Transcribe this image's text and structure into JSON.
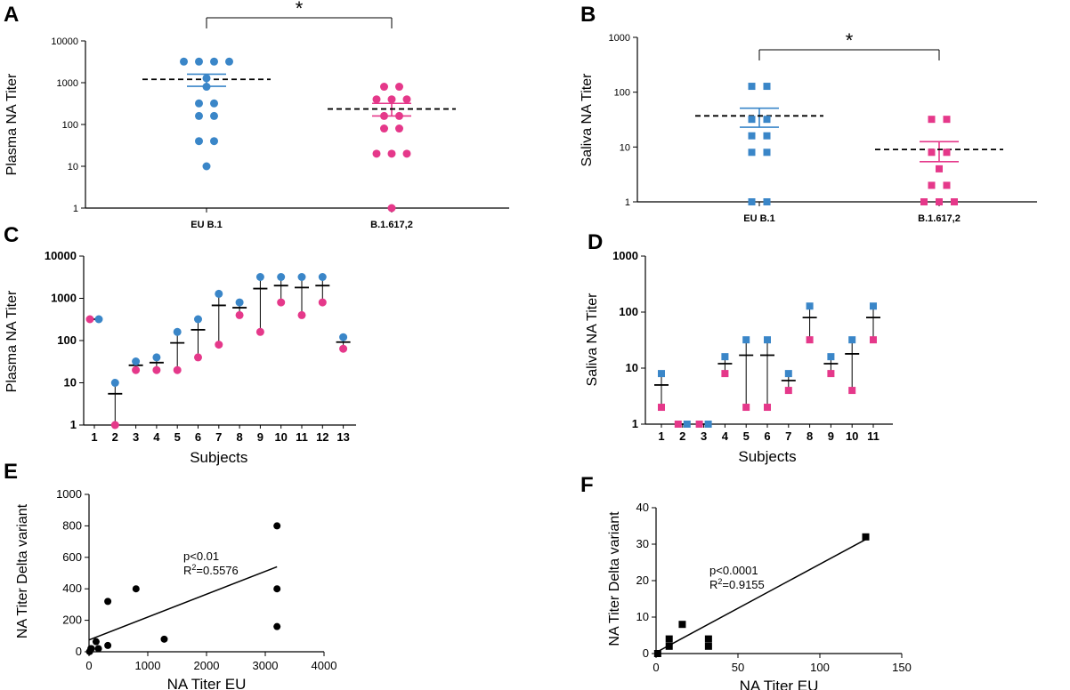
{
  "colors": {
    "blue": "#3a86c8",
    "pink": "#e5388a",
    "black": "#000000"
  },
  "chart_data": [
    {
      "panel": "A",
      "type": "scatter",
      "ylabel": "Plasma NA Titer",
      "xlabel": "",
      "yscale": "log",
      "ylim": [
        1,
        10000
      ],
      "yticks": [
        "1",
        "10",
        "100",
        "1000",
        "10000"
      ],
      "categories": [
        "EU B.1",
        "B.1.617,2"
      ],
      "series": [
        {
          "name": "EU B.1",
          "color": "blue",
          "geo_mean": 1200,
          "sem_low": 820,
          "sem_high": 1600,
          "values": [
            3200,
            3200,
            3200,
            3200,
            1280,
            800,
            320,
            320,
            160,
            160,
            40,
            40,
            10
          ]
        },
        {
          "name": "B.1.617,2",
          "color": "pink",
          "geo_mean": 235,
          "sem_low": 160,
          "sem_high": 320,
          "values": [
            800,
            800,
            400,
            400,
            400,
            160,
            160,
            80,
            80,
            20,
            20,
            20,
            1
          ]
        }
      ],
      "significance": "*"
    },
    {
      "panel": "B",
      "type": "scatter",
      "ylabel": "Saliva NA  Titer",
      "xlabel": "",
      "yscale": "log",
      "ylim": [
        1,
        1000
      ],
      "yticks": [
        "1",
        "10",
        "100",
        "1000"
      ],
      "categories": [
        "EU B.1",
        "B.1.617,2"
      ],
      "series": [
        {
          "name": "EU B.1",
          "color": "blue",
          "geo_mean": 37,
          "sem_low": 23,
          "sem_high": 51,
          "values": [
            128,
            128,
            32,
            32,
            16,
            16,
            8,
            8,
            1,
            1
          ]
        },
        {
          "name": "B.1.617,2",
          "color": "pink",
          "geo_mean": 9,
          "sem_low": 5.4,
          "sem_high": 12.5,
          "values": [
            32,
            32,
            8,
            8,
            4,
            2,
            2,
            1,
            1,
            1
          ]
        }
      ],
      "significance": "*"
    },
    {
      "panel": "C",
      "type": "scatter",
      "ylabel": "Plasma NA Titer",
      "xlabel": "Subjects",
      "yscale": "log",
      "ylim": [
        1,
        10000
      ],
      "yticks": [
        "1",
        "10",
        "100",
        "1000",
        "10000"
      ],
      "categories": [
        "1",
        "2",
        "3",
        "4",
        "5",
        "6",
        "7",
        "8",
        "9",
        "10",
        "11",
        "12",
        "13"
      ],
      "series": [
        {
          "name": "EU B.1",
          "color": "blue",
          "values": [
            320,
            10,
            32,
            40,
            160,
            320,
            1280,
            800,
            3200,
            3200,
            3200,
            3200,
            120
          ]
        },
        {
          "name": "B.1.617,2",
          "color": "pink",
          "values": [
            320,
            1,
            20,
            20,
            20,
            40,
            80,
            400,
            160,
            800,
            400,
            800,
            64
          ]
        }
      ],
      "means": [
        320,
        5.5,
        26,
        30,
        88,
        180,
        680,
        600,
        1700,
        2000,
        1800,
        2000,
        92
      ]
    },
    {
      "panel": "D",
      "type": "scatter",
      "ylabel": "Saliva NA  Titer",
      "xlabel": "Subjects",
      "yscale": "log",
      "ylim": [
        1,
        1000
      ],
      "yticks": [
        "1",
        "10",
        "100",
        "1000"
      ],
      "categories": [
        "1",
        "2",
        "3",
        "4",
        "5",
        "6",
        "7",
        "8",
        "9",
        "10",
        "11"
      ],
      "series": [
        {
          "name": "EU B.1",
          "color": "blue",
          "values": [
            8,
            1,
            1,
            16,
            32,
            32,
            8,
            128,
            16,
            32,
            128
          ]
        },
        {
          "name": "B.1.617,2",
          "color": "pink",
          "values": [
            2,
            1,
            1,
            8,
            2,
            2,
            4,
            32,
            8,
            4,
            32
          ]
        }
      ],
      "means": [
        5,
        1,
        1,
        12,
        17,
        17,
        6,
        80,
        12,
        18,
        80
      ]
    },
    {
      "panel": "E",
      "type": "scatter",
      "xlabel": "NA Titer EU",
      "ylabel": "NA Titer Delta variant",
      "xlim": [
        0,
        4000
      ],
      "ylim": [
        0,
        1000
      ],
      "xticks": [
        "0",
        "1000",
        "2000",
        "3000",
        "4000"
      ],
      "yticks": [
        "0",
        "200",
        "400",
        "600",
        "800",
        "1000"
      ],
      "points": [
        [
          10,
          1
        ],
        [
          32,
          20
        ],
        [
          40,
          20
        ],
        [
          120,
          64
        ],
        [
          160,
          20
        ],
        [
          320,
          40
        ],
        [
          320,
          320
        ],
        [
          800,
          400
        ],
        [
          1280,
          80
        ],
        [
          3200,
          800
        ],
        [
          3200,
          400
        ],
        [
          3200,
          160
        ]
      ],
      "fit": {
        "x1": 0,
        "y1": 75,
        "x2": 3200,
        "y2": 540
      },
      "annotation": {
        "p": "p<0.01",
        "r2_prefix": "R",
        "r2_sup": "2",
        "r2_value": "=0.5576"
      }
    },
    {
      "panel": "F",
      "type": "scatter",
      "xlabel": "NA Titer EU",
      "ylabel": "NA Titer Delta variant",
      "xlim": [
        0,
        150
      ],
      "ylim": [
        0,
        40
      ],
      "xticks": [
        "0",
        "50",
        "100",
        "150"
      ],
      "yticks": [
        "0",
        "10",
        "20",
        "30",
        "40"
      ],
      "points": [
        [
          1,
          0
        ],
        [
          8,
          2
        ],
        [
          8,
          4
        ],
        [
          16,
          8
        ],
        [
          32,
          4
        ],
        [
          32,
          2
        ],
        [
          128,
          32
        ]
      ],
      "fit": {
        "x1": 0,
        "y1": 0.3,
        "x2": 128,
        "y2": 31.3
      },
      "annotation": {
        "p": "p<0.0001",
        "r2_prefix": "R",
        "r2_sup": "2",
        "r2_value": "=0.9155"
      }
    }
  ]
}
